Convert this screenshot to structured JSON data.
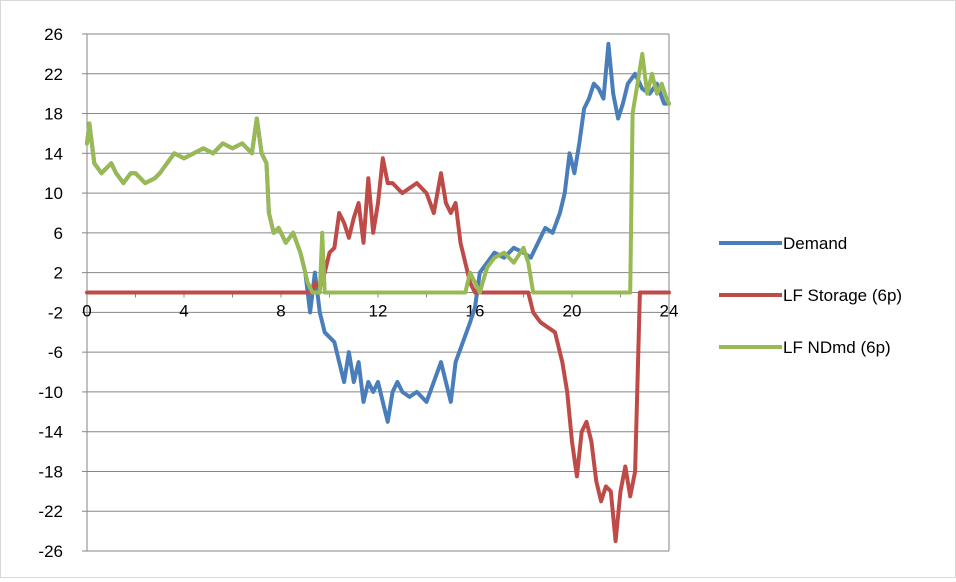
{
  "chart_data": {
    "type": "line",
    "title": "",
    "xlabel": "",
    "ylabel": "",
    "xlim": [
      0,
      24
    ],
    "ylim": [
      -26,
      26
    ],
    "x_ticks": [
      0,
      4,
      8,
      12,
      16,
      20,
      24
    ],
    "y_ticks": [
      26,
      22,
      18,
      14,
      10,
      6,
      2,
      -2,
      -6,
      -10,
      -14,
      -18,
      -22,
      -26
    ],
    "grid": "horizontal",
    "legend_position": "right",
    "series": [
      {
        "name": "Demand",
        "color": "#4a7ebb",
        "points": [
          [
            0,
            15
          ],
          [
            0.1,
            17
          ],
          [
            0.3,
            13
          ],
          [
            0.6,
            12
          ],
          [
            0.8,
            12.5
          ],
          [
            1,
            13
          ],
          [
            1.2,
            12
          ],
          [
            1.5,
            11
          ],
          [
            1.8,
            12
          ],
          [
            2,
            12
          ],
          [
            2.4,
            11
          ],
          [
            2.8,
            11.5
          ],
          [
            3,
            12
          ],
          [
            3.3,
            13
          ],
          [
            3.6,
            14
          ],
          [
            4,
            13.5
          ],
          [
            4.4,
            14
          ],
          [
            4.8,
            14.5
          ],
          [
            5.2,
            14
          ],
          [
            5.6,
            15
          ],
          [
            6,
            14.5
          ],
          [
            6.4,
            15
          ],
          [
            6.8,
            14
          ],
          [
            7,
            17.5
          ],
          [
            7.2,
            14
          ],
          [
            7.4,
            13
          ],
          [
            7.5,
            8
          ],
          [
            7.7,
            6
          ],
          [
            7.9,
            6.5
          ],
          [
            8.2,
            5
          ],
          [
            8.5,
            6
          ],
          [
            8.8,
            4
          ],
          [
            9,
            2
          ],
          [
            9.2,
            -2
          ],
          [
            9.4,
            2
          ],
          [
            9.6,
            -2
          ],
          [
            9.8,
            -4
          ],
          [
            10,
            -4.5
          ],
          [
            10.2,
            -5
          ],
          [
            10.4,
            -7
          ],
          [
            10.6,
            -9
          ],
          [
            10.8,
            -6
          ],
          [
            11,
            -9
          ],
          [
            11.2,
            -7
          ],
          [
            11.4,
            -11
          ],
          [
            11.6,
            -9
          ],
          [
            11.8,
            -10
          ],
          [
            12,
            -9
          ],
          [
            12.2,
            -11
          ],
          [
            12.4,
            -13
          ],
          [
            12.6,
            -10
          ],
          [
            12.8,
            -9
          ],
          [
            13,
            -10
          ],
          [
            13.3,
            -10.5
          ],
          [
            13.6,
            -10
          ],
          [
            14,
            -11
          ],
          [
            14.3,
            -9
          ],
          [
            14.6,
            -7
          ],
          [
            14.8,
            -9
          ],
          [
            15,
            -11
          ],
          [
            15.2,
            -7
          ],
          [
            15.5,
            -5
          ],
          [
            15.8,
            -3
          ],
          [
            16,
            -1.5
          ],
          [
            16.2,
            2
          ],
          [
            16.5,
            3
          ],
          [
            16.8,
            4
          ],
          [
            17.2,
            3.5
          ],
          [
            17.6,
            4.5
          ],
          [
            18,
            4
          ],
          [
            18.3,
            3.5
          ],
          [
            18.6,
            5
          ],
          [
            18.9,
            6.5
          ],
          [
            19.2,
            6
          ],
          [
            19.5,
            8
          ],
          [
            19.7,
            10
          ],
          [
            19.9,
            14
          ],
          [
            20.1,
            12
          ],
          [
            20.3,
            15
          ],
          [
            20.5,
            18.5
          ],
          [
            20.7,
            19.5
          ],
          [
            20.9,
            21
          ],
          [
            21.1,
            20.5
          ],
          [
            21.3,
            19.5
          ],
          [
            21.5,
            25
          ],
          [
            21.7,
            20
          ],
          [
            21.9,
            17.5
          ],
          [
            22.1,
            19
          ],
          [
            22.3,
            21
          ],
          [
            22.6,
            22
          ],
          [
            22.9,
            20.5
          ],
          [
            23.2,
            20
          ],
          [
            23.5,
            21
          ],
          [
            23.8,
            19
          ],
          [
            24,
            19
          ]
        ]
      },
      {
        "name": "LF Storage (6p)",
        "color": "#be4b48",
        "points": [
          [
            0,
            0
          ],
          [
            9.3,
            0
          ],
          [
            9.4,
            1
          ],
          [
            9.6,
            0.5
          ],
          [
            9.8,
            2
          ],
          [
            10,
            4
          ],
          [
            10.2,
            4.5
          ],
          [
            10.4,
            8
          ],
          [
            10.6,
            7
          ],
          [
            10.8,
            5.5
          ],
          [
            11,
            7.5
          ],
          [
            11.2,
            9
          ],
          [
            11.4,
            5
          ],
          [
            11.6,
            11.5
          ],
          [
            11.8,
            6
          ],
          [
            12,
            9
          ],
          [
            12.2,
            13.5
          ],
          [
            12.4,
            11
          ],
          [
            12.6,
            11
          ],
          [
            12.8,
            10.5
          ],
          [
            13,
            10
          ],
          [
            13.3,
            10.5
          ],
          [
            13.6,
            11
          ],
          [
            14,
            10
          ],
          [
            14.3,
            8
          ],
          [
            14.6,
            12
          ],
          [
            14.8,
            9
          ],
          [
            15,
            8
          ],
          [
            15.2,
            9
          ],
          [
            15.4,
            5
          ],
          [
            15.6,
            3
          ],
          [
            15.8,
            1
          ],
          [
            16,
            0
          ],
          [
            18.2,
            0
          ],
          [
            18.4,
            -2
          ],
          [
            18.7,
            -3
          ],
          [
            19,
            -3.5
          ],
          [
            19.3,
            -4
          ],
          [
            19.6,
            -7
          ],
          [
            19.8,
            -10
          ],
          [
            20,
            -15
          ],
          [
            20.2,
            -18.5
          ],
          [
            20.4,
            -14
          ],
          [
            20.6,
            -13
          ],
          [
            20.8,
            -15
          ],
          [
            21,
            -19
          ],
          [
            21.2,
            -21
          ],
          [
            21.4,
            -19.5
          ],
          [
            21.6,
            -20
          ],
          [
            21.8,
            -25
          ],
          [
            22,
            -20
          ],
          [
            22.2,
            -17.5
          ],
          [
            22.4,
            -20.5
          ],
          [
            22.6,
            -18
          ],
          [
            22.8,
            0
          ],
          [
            24,
            0
          ]
        ]
      },
      {
        "name": "LF NDmd (6p)",
        "color": "#98b954",
        "points": [
          [
            0,
            15
          ],
          [
            0.1,
            17
          ],
          [
            0.3,
            13
          ],
          [
            0.6,
            12
          ],
          [
            0.8,
            12.5
          ],
          [
            1,
            13
          ],
          [
            1.2,
            12
          ],
          [
            1.5,
            11
          ],
          [
            1.8,
            12
          ],
          [
            2,
            12
          ],
          [
            2.4,
            11
          ],
          [
            2.8,
            11.5
          ],
          [
            3,
            12
          ],
          [
            3.3,
            13
          ],
          [
            3.6,
            14
          ],
          [
            4,
            13.5
          ],
          [
            4.4,
            14
          ],
          [
            4.8,
            14.5
          ],
          [
            5.2,
            14
          ],
          [
            5.6,
            15
          ],
          [
            6,
            14.5
          ],
          [
            6.4,
            15
          ],
          [
            6.8,
            14
          ],
          [
            7,
            17.5
          ],
          [
            7.2,
            14
          ],
          [
            7.4,
            13
          ],
          [
            7.5,
            8
          ],
          [
            7.7,
            6
          ],
          [
            7.9,
            6.5
          ],
          [
            8.2,
            5
          ],
          [
            8.5,
            6
          ],
          [
            8.8,
            4
          ],
          [
            9.1,
            1
          ],
          [
            9.3,
            0
          ],
          [
            9.6,
            0
          ],
          [
            9.7,
            6
          ],
          [
            9.8,
            0
          ],
          [
            15.6,
            0
          ],
          [
            15.8,
            2
          ],
          [
            16,
            1
          ],
          [
            16.2,
            0
          ],
          [
            16.5,
            2.5
          ],
          [
            16.8,
            3.5
          ],
          [
            17.2,
            4
          ],
          [
            17.6,
            3
          ],
          [
            18,
            4.5
          ],
          [
            18.2,
            3
          ],
          [
            18.4,
            0
          ],
          [
            22.4,
            0
          ],
          [
            22.5,
            18
          ],
          [
            22.7,
            21
          ],
          [
            22.9,
            24
          ],
          [
            23.1,
            20
          ],
          [
            23.3,
            22
          ],
          [
            23.5,
            20
          ],
          [
            23.7,
            21
          ],
          [
            23.9,
            19.5
          ],
          [
            24,
            19
          ]
        ]
      }
    ]
  }
}
